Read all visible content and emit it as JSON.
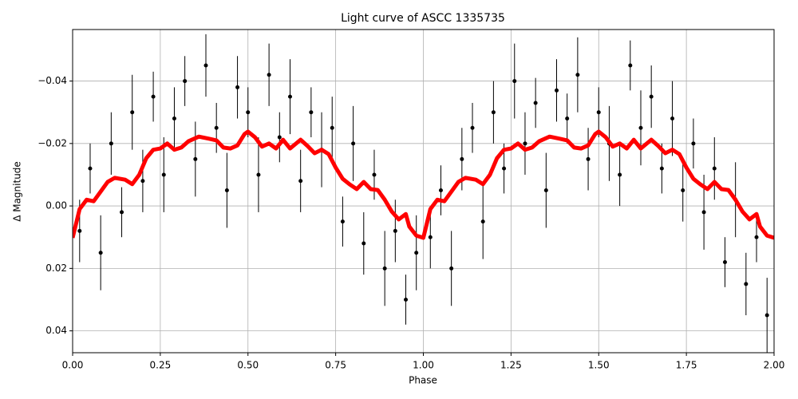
{
  "chart_data": {
    "type": "errorbar",
    "title": "Light curve of ASCC 1335735",
    "x_label": "Phase",
    "y_label": "Δ Magnitude",
    "xlim": [
      0,
      2
    ],
    "ylim": [
      -0.0565,
      0.047
    ],
    "y_inverted": true,
    "grid": true,
    "xticks": [
      {
        "value": 0,
        "label": "0.00"
      },
      {
        "value": 0.25,
        "label": "0.25"
      },
      {
        "value": 0.5,
        "label": "0.50"
      },
      {
        "value": 0.75,
        "label": "0.75"
      },
      {
        "value": 1,
        "label": "1.00"
      },
      {
        "value": 1.25,
        "label": "1.25"
      },
      {
        "value": 1.5,
        "label": "1.50"
      },
      {
        "value": 1.75,
        "label": "1.75"
      },
      {
        "value": 2,
        "label": "2.00"
      }
    ],
    "yticks": [
      {
        "value": -0.04,
        "label": "−0.04"
      },
      {
        "value": -0.02,
        "label": "−0.02"
      },
      {
        "value": 0,
        "label": "0.00"
      },
      0.02,
      0.04
    ],
    "points": {
      "color": "#000000",
      "x": [
        0.02,
        0.05,
        0.08,
        0.11,
        0.14,
        0.17,
        0.2,
        0.23,
        0.26,
        0.29,
        0.32,
        0.35,
        0.38,
        0.41,
        0.44,
        0.47,
        0.5,
        0.53,
        0.56,
        0.59,
        0.62,
        0.65,
        0.68,
        0.71,
        0.74,
        0.77,
        0.8,
        0.83,
        0.86,
        0.89,
        0.92,
        0.95,
        0.98,
        1.02,
        1.05,
        1.08,
        1.11,
        1.14,
        1.17,
        1.2,
        1.23,
        1.26,
        1.29,
        1.32,
        1.35,
        1.38,
        1.41,
        1.44,
        1.47,
        1.5,
        1.53,
        1.56,
        1.59,
        1.62,
        1.65,
        1.68,
        1.71,
        1.74,
        1.77,
        1.8,
        1.83,
        1.86,
        1.89,
        1.92,
        1.95,
        1.98
      ],
      "y": [
        0.008,
        -0.012,
        0.015,
        -0.02,
        0.002,
        -0.03,
        -0.008,
        -0.035,
        -0.01,
        -0.028,
        -0.04,
        -0.015,
        -0.045,
        -0.025,
        -0.005,
        -0.038,
        -0.03,
        -0.01,
        -0.042,
        -0.022,
        -0.035,
        -0.008,
        -0.03,
        -0.018,
        -0.025,
        0.005,
        -0.02,
        0.012,
        -0.01,
        0.02,
        0.008,
        0.03,
        0.015,
        0.01,
        -0.005,
        0.02,
        -0.015,
        -0.025,
        0.005,
        -0.03,
        -0.012,
        -0.04,
        -0.02,
        -0.033,
        -0.005,
        -0.037,
        -0.028,
        -0.042,
        -0.015,
        -0.03,
        -0.02,
        -0.01,
        -0.045,
        -0.025,
        -0.035,
        -0.012,
        -0.028,
        -0.005,
        -0.02,
        0.002,
        -0.012,
        0.018,
        -0.002,
        0.025,
        0.01,
        0.035
      ],
      "yerr": [
        0.01,
        0.008,
        0.012,
        0.01,
        0.008,
        0.012,
        0.01,
        0.008,
        0.012,
        0.01,
        0.008,
        0.012,
        0.01,
        0.008,
        0.012,
        0.01,
        0.008,
        0.012,
        0.01,
        0.008,
        0.012,
        0.01,
        0.008,
        0.012,
        0.01,
        0.008,
        0.012,
        0.01,
        0.008,
        0.012,
        0.01,
        0.008,
        0.012,
        0.01,
        0.008,
        0.012,
        0.01,
        0.008,
        0.012,
        0.01,
        0.008,
        0.012,
        0.01,
        0.008,
        0.012,
        0.01,
        0.008,
        0.012,
        0.01,
        0.008,
        0.012,
        0.01,
        0.008,
        0.012,
        0.01,
        0.008,
        0.012,
        0.01,
        0.008,
        0.012,
        0.01,
        0.008,
        0.012,
        0.01,
        0.008,
        0.012
      ]
    },
    "curve": {
      "color": "#ff0000",
      "x": [
        0,
        0.02,
        0.04,
        0.06,
        0.08,
        0.1,
        0.12,
        0.15,
        0.17,
        0.19,
        0.21,
        0.23,
        0.25,
        0.27,
        0.29,
        0.31,
        0.33,
        0.36,
        0.39,
        0.41,
        0.43,
        0.45,
        0.47,
        0.49,
        0.5,
        0.52,
        0.54,
        0.56,
        0.58,
        0.6,
        0.62,
        0.65,
        0.67,
        0.69,
        0.71,
        0.73,
        0.75,
        0.77,
        0.79,
        0.81,
        0.83,
        0.85,
        0.87,
        0.89,
        0.91,
        0.93,
        0.95,
        0.96,
        0.98,
        1,
        1.02,
        1.04,
        1.06,
        1.08,
        1.1,
        1.12,
        1.15,
        1.17,
        1.19,
        1.21,
        1.23,
        1.25,
        1.27,
        1.29,
        1.31,
        1.33,
        1.36,
        1.39,
        1.41,
        1.43,
        1.45,
        1.47,
        1.49,
        1.5,
        1.52,
        1.54,
        1.56,
        1.58,
        1.6,
        1.62,
        1.65,
        1.67,
        1.69,
        1.71,
        1.73,
        1.75,
        1.77,
        1.79,
        1.81,
        1.83,
        1.85,
        1.87,
        1.89,
        1.91,
        1.93,
        1.95,
        1.96,
        1.98,
        2
      ],
      "values": [
        0.0102,
        0.001,
        -0.002,
        -0.0015,
        -0.0046,
        -0.0077,
        -0.009,
        -0.0084,
        -0.007,
        -0.01,
        -0.0153,
        -0.018,
        -0.0184,
        -0.02,
        -0.018,
        -0.0187,
        -0.0207,
        -0.0222,
        -0.0215,
        -0.021,
        -0.0187,
        -0.0184,
        -0.0194,
        -0.023,
        -0.0238,
        -0.022,
        -0.019,
        -0.02,
        -0.0184,
        -0.0212,
        -0.0184,
        -0.0212,
        -0.0192,
        -0.0169,
        -0.018,
        -0.0166,
        -0.0123,
        -0.0087,
        -0.0069,
        -0.0054,
        -0.0077,
        -0.0054,
        -0.0051,
        -0.002,
        0.0018,
        0.0043,
        0.0026,
        0.0066,
        0.0095,
        0.0102,
        0.001,
        -0.002,
        -0.0015,
        -0.0046,
        -0.0077,
        -0.009,
        -0.0084,
        -0.007,
        -0.01,
        -0.0153,
        -0.018,
        -0.0184,
        -0.02,
        -0.018,
        -0.0187,
        -0.0207,
        -0.0222,
        -0.0215,
        -0.021,
        -0.0187,
        -0.0184,
        -0.0194,
        -0.023,
        -0.0238,
        -0.022,
        -0.019,
        -0.02,
        -0.0184,
        -0.0212,
        -0.0184,
        -0.0212,
        -0.0192,
        -0.0169,
        -0.018,
        -0.0166,
        -0.0123,
        -0.0087,
        -0.0069,
        -0.0054,
        -0.0077,
        -0.0054,
        -0.0051,
        -0.002,
        0.0018,
        0.0043,
        0.0026,
        0.0066,
        0.0095,
        0.0102
      ]
    }
  }
}
